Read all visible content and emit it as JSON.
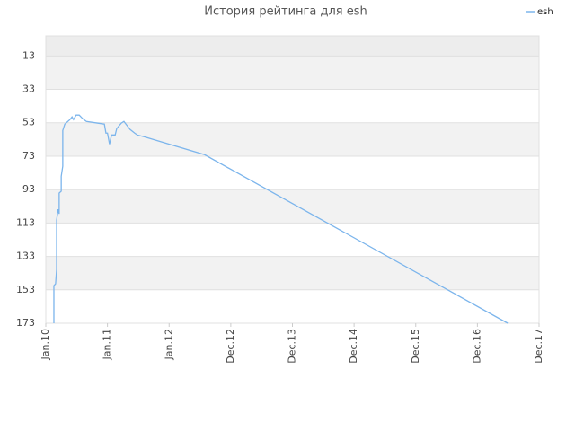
{
  "chart_data": {
    "type": "line",
    "title": "История рейтинга для esh",
    "x": [
      1.57,
      1.57,
      1.9,
      2.1,
      2.1,
      2.4,
      2.6,
      2.6,
      3.0,
      3.0,
      3.3,
      3.3,
      3.7,
      4.7,
      5.1,
      5.4,
      5.9,
      6.5,
      7.2,
      7.9,
      10.3,
      11.4,
      11.7,
      12.0,
      12.4,
      12.8,
      13.5,
      13.8,
      14.7,
      15.2,
      15.6,
      16.4,
      17.3,
      17.8,
      19.1,
      30.9,
      89.9
    ],
    "series": [
      {
        "name": "esh",
        "color": "#7cb5ec",
        "values": [
          173,
          150.5,
          149.4,
          140.8,
          111.3,
          104.8,
          107.5,
          95.1,
          94,
          85,
          79,
          57.6,
          53.8,
          51.1,
          49.5,
          51.1,
          48.4,
          48.4,
          50.6,
          52.2,
          53.3,
          53.8,
          59.2,
          59.2,
          65.8,
          60.3,
          60.3,
          56.5,
          53.2,
          52.2,
          53.8,
          57.0,
          59.2,
          60.3,
          61.3,
          72.1,
          173
        ]
      }
    ],
    "xlim": [
      0,
      96
    ],
    "xticks": [
      {
        "value": 0,
        "label": "Jan.10"
      },
      {
        "value": 12,
        "label": "Jan.11"
      },
      {
        "value": 24,
        "label": "Jan.12"
      },
      {
        "value": 36,
        "label": "Dec.12"
      },
      {
        "value": 48,
        "label": "Dec.13"
      },
      {
        "value": 60,
        "label": "Dec.14"
      },
      {
        "value": 72,
        "label": "Dec.15"
      },
      {
        "value": 84,
        "label": "Dec.16"
      },
      {
        "value": 96,
        "label": "Dec.17"
      }
    ],
    "ylim": [
      173,
      1
    ],
    "yticks": [
      13,
      33,
      53,
      73,
      93,
      113,
      133,
      153,
      173
    ],
    "grid": true,
    "legend": "top-right"
  }
}
